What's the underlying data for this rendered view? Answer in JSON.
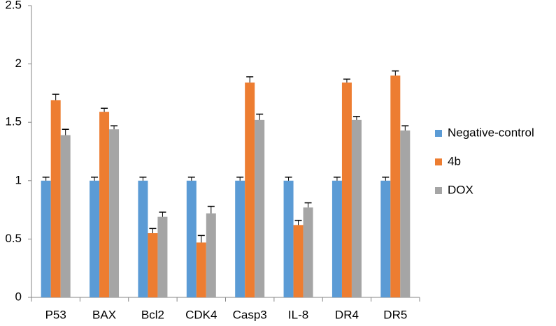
{
  "chart_data": {
    "type": "bar",
    "categories": [
      "P53",
      "BAX",
      "Bcl2",
      "CDK4",
      "Casp3",
      "IL-8",
      "DR4",
      "DR5"
    ],
    "series": [
      {
        "name": "Negative-control",
        "color": "#5b9bd5",
        "values": [
          1,
          1,
          1,
          1,
          1,
          1,
          1,
          1
        ],
        "errors": [
          0.03,
          0.03,
          0.03,
          0.03,
          0.03,
          0.03,
          0.03,
          0.03
        ]
      },
      {
        "name": "4b",
        "color": "#ed7d31",
        "values": [
          1.69,
          1.59,
          0.55,
          0.47,
          1.84,
          0.62,
          1.84,
          1.9
        ],
        "errors": [
          0.05,
          0.03,
          0.04,
          0.06,
          0.05,
          0.04,
          0.03,
          0.04
        ]
      },
      {
        "name": "DOX",
        "color": "#a5a5a5",
        "values": [
          1.39,
          1.44,
          0.69,
          0.72,
          1.52,
          0.77,
          1.52,
          1.43
        ],
        "errors": [
          0.05,
          0.03,
          0.04,
          0.06,
          0.05,
          0.04,
          0.03,
          0.04
        ]
      }
    ],
    "ylim": [
      0,
      2.5
    ],
    "yticks": [
      0,
      0.5,
      1,
      1.5,
      2,
      2.5
    ],
    "grid": false,
    "legend": "right"
  }
}
